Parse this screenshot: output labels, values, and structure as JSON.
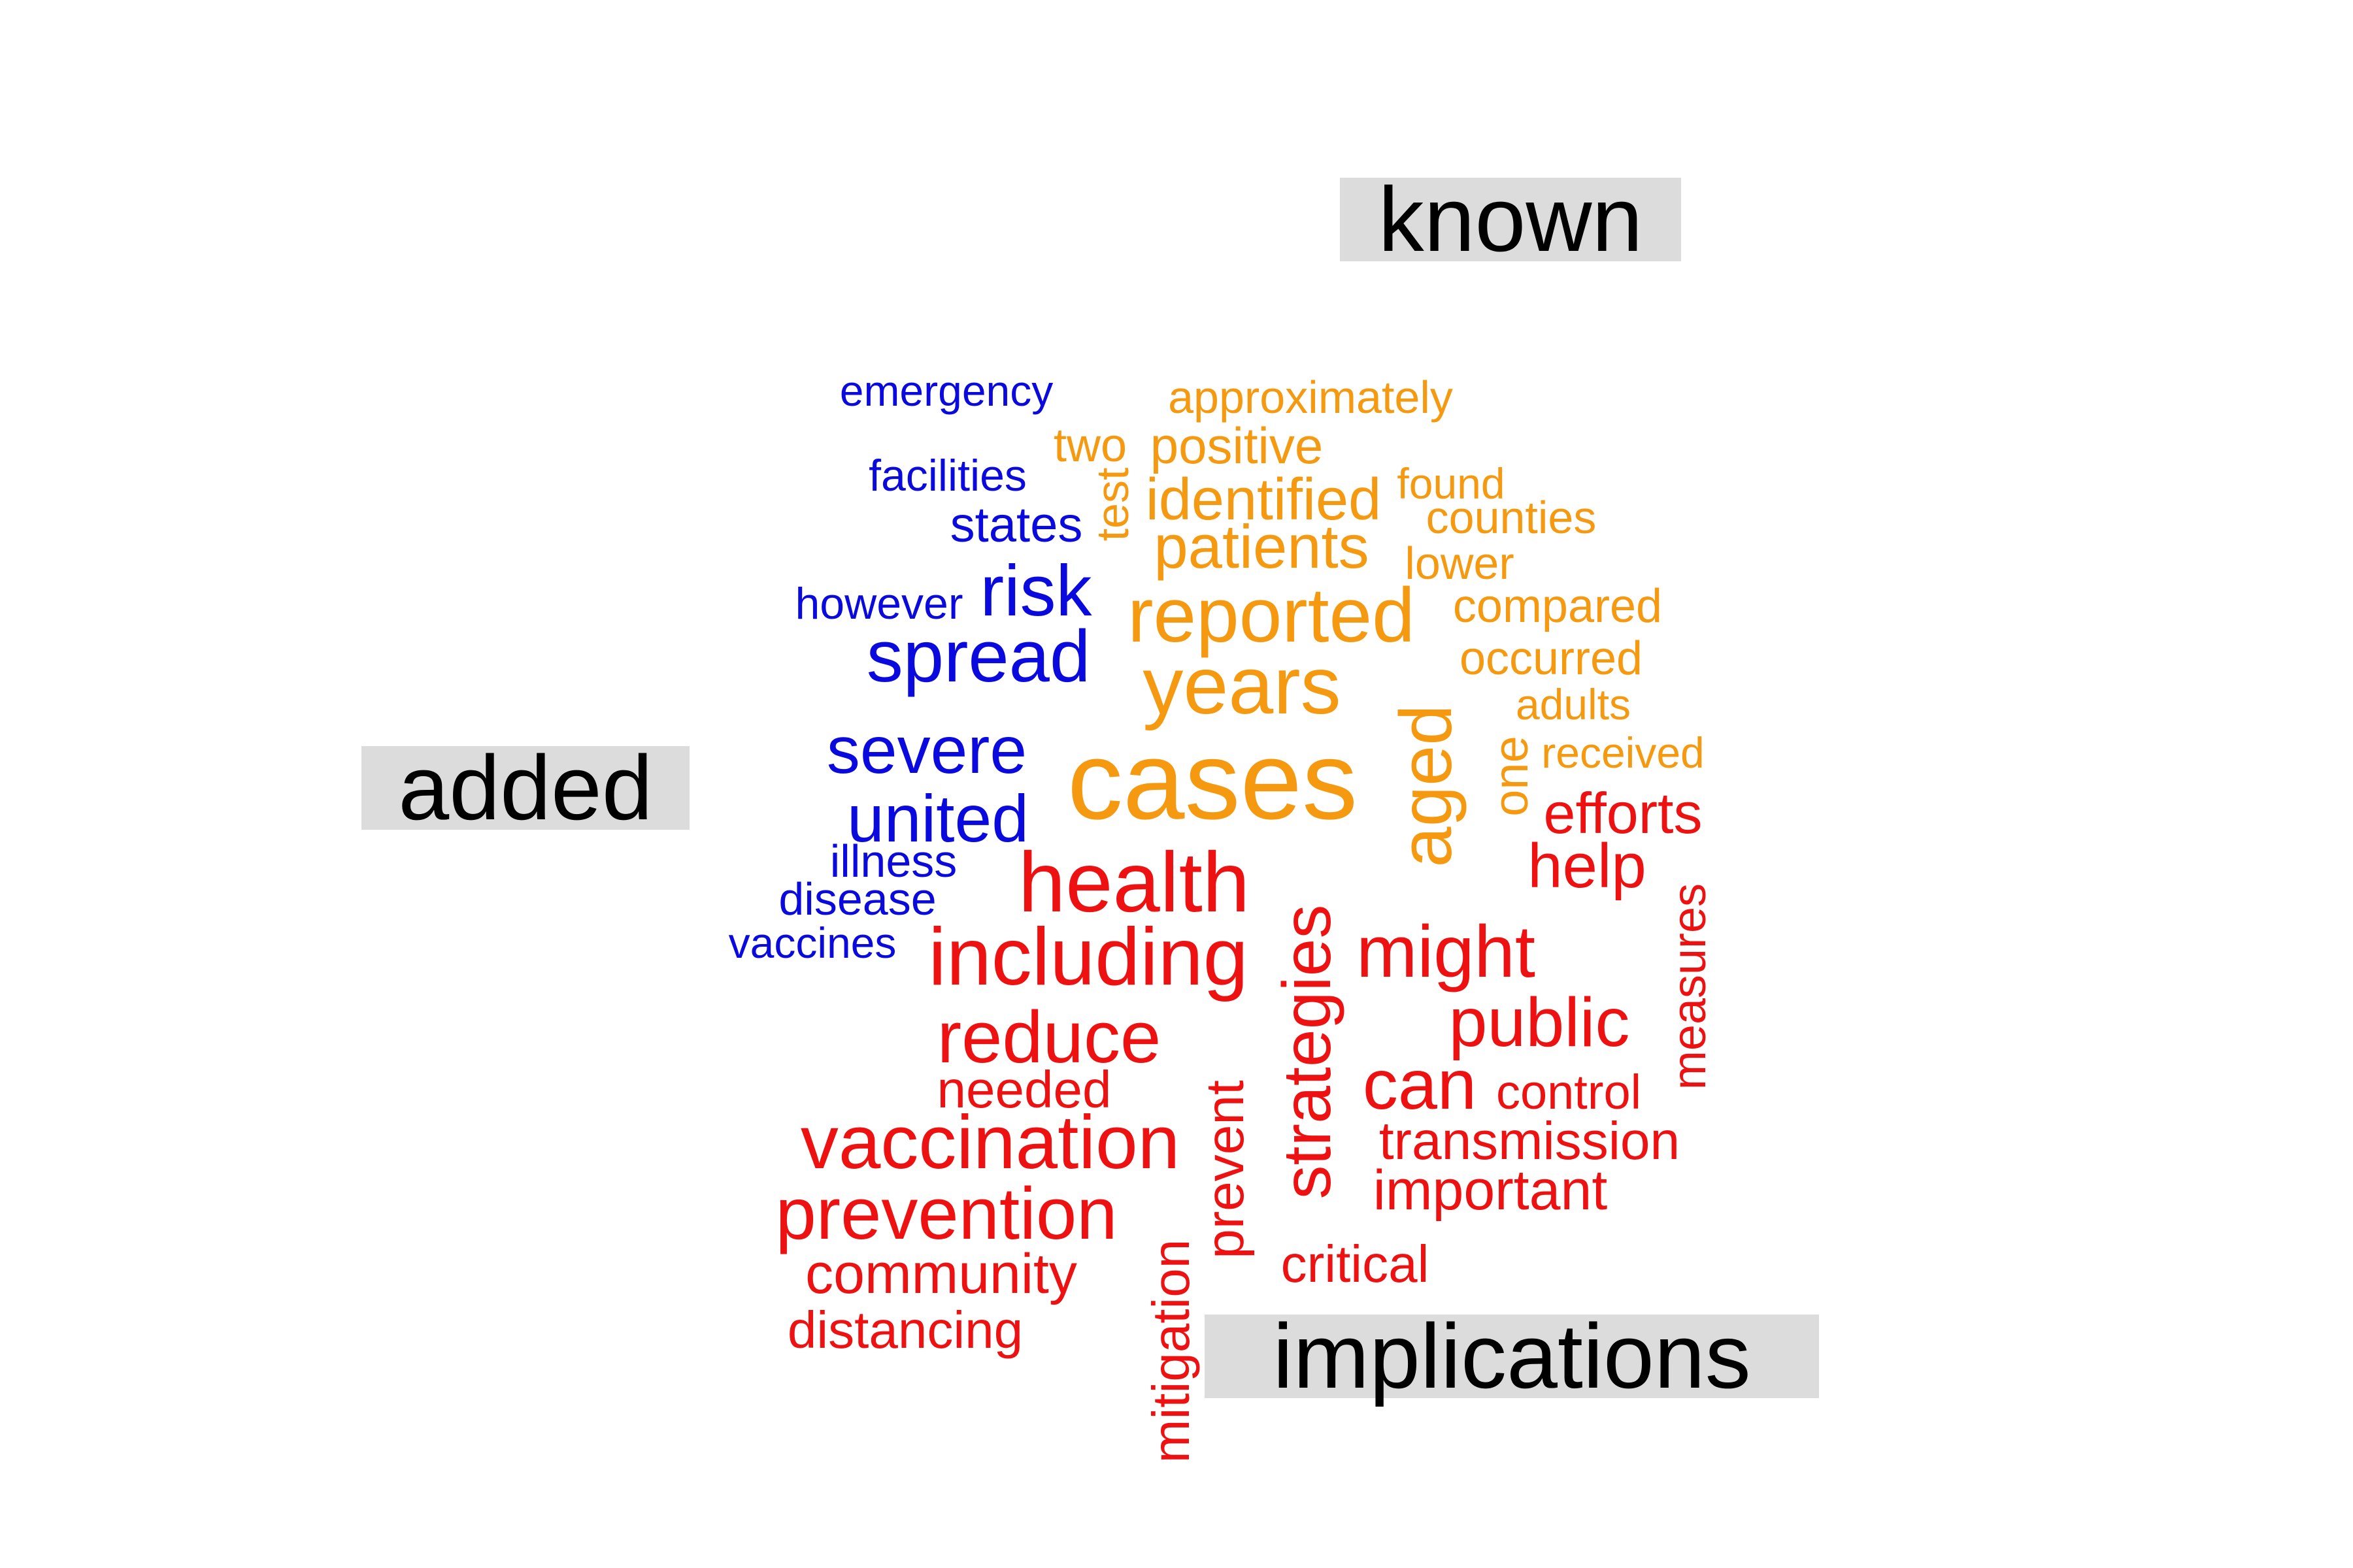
{
  "group_labels": {
    "known": "known",
    "added": "added",
    "implications": "implications"
  },
  "colors": {
    "known": "#f59a10",
    "added": "#0a0adf",
    "implications": "#ee1111",
    "label_background": "#dcdcdc",
    "label_text": "#000000"
  },
  "words": [
    {
      "text": "emergency",
      "group": "added"
    },
    {
      "text": "facilities",
      "group": "added"
    },
    {
      "text": "states",
      "group": "added"
    },
    {
      "text": "however",
      "group": "added"
    },
    {
      "text": "risk",
      "group": "added"
    },
    {
      "text": "spread",
      "group": "added"
    },
    {
      "text": "severe",
      "group": "added"
    },
    {
      "text": "united",
      "group": "added"
    },
    {
      "text": "illness",
      "group": "added"
    },
    {
      "text": "disease",
      "group": "added"
    },
    {
      "text": "vaccines",
      "group": "added"
    },
    {
      "text": "approximately",
      "group": "known"
    },
    {
      "text": "two",
      "group": "known"
    },
    {
      "text": "positive",
      "group": "known"
    },
    {
      "text": "test",
      "group": "known"
    },
    {
      "text": "identified",
      "group": "known"
    },
    {
      "text": "found",
      "group": "known"
    },
    {
      "text": "counties",
      "group": "known"
    },
    {
      "text": "patients",
      "group": "known"
    },
    {
      "text": "lower",
      "group": "known"
    },
    {
      "text": "reported",
      "group": "known"
    },
    {
      "text": "compared",
      "group": "known"
    },
    {
      "text": "occurred",
      "group": "known"
    },
    {
      "text": "years",
      "group": "known"
    },
    {
      "text": "adults",
      "group": "known"
    },
    {
      "text": "received",
      "group": "known"
    },
    {
      "text": "one",
      "group": "known"
    },
    {
      "text": "aged",
      "group": "known"
    },
    {
      "text": "cases",
      "group": "known"
    },
    {
      "text": "efforts",
      "group": "implications"
    },
    {
      "text": "help",
      "group": "implications"
    },
    {
      "text": "health",
      "group": "implications"
    },
    {
      "text": "measures",
      "group": "implications"
    },
    {
      "text": "including",
      "group": "implications"
    },
    {
      "text": "strategies",
      "group": "implications"
    },
    {
      "text": "might",
      "group": "implications"
    },
    {
      "text": "public",
      "group": "implications"
    },
    {
      "text": "reduce",
      "group": "implications"
    },
    {
      "text": "can",
      "group": "implications"
    },
    {
      "text": "control",
      "group": "implications"
    },
    {
      "text": "needed",
      "group": "implications"
    },
    {
      "text": "prevent",
      "group": "implications"
    },
    {
      "text": "vaccination",
      "group": "implications"
    },
    {
      "text": "transmission",
      "group": "implications"
    },
    {
      "text": "important",
      "group": "implications"
    },
    {
      "text": "prevention",
      "group": "implications"
    },
    {
      "text": "critical",
      "group": "implications"
    },
    {
      "text": "community",
      "group": "implications"
    },
    {
      "text": "mitigation",
      "group": "implications"
    },
    {
      "text": "distancing",
      "group": "implications"
    }
  ]
}
